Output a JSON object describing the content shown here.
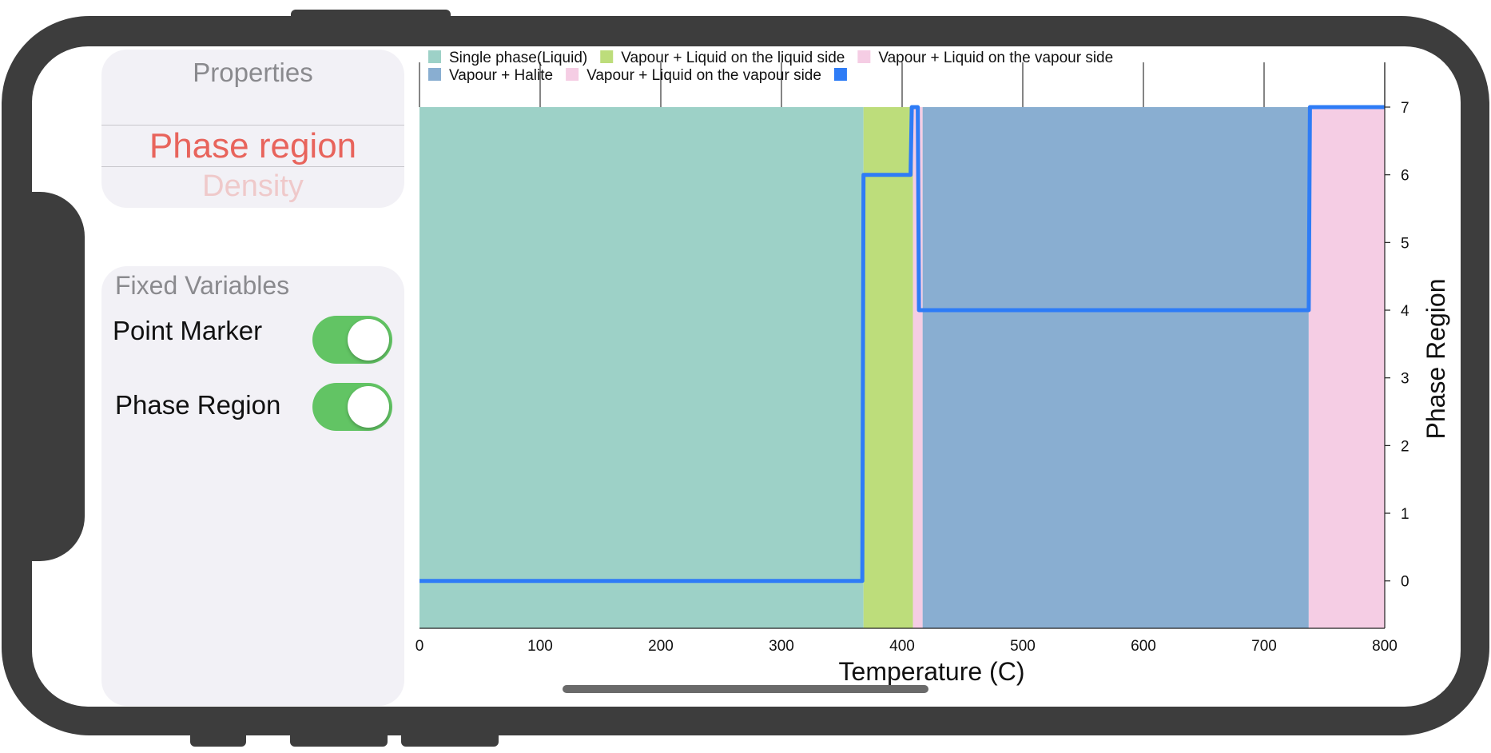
{
  "properties": {
    "title": "Properties",
    "selected": "Phase region",
    "next_item": "Density"
  },
  "fixed_variables": {
    "title": "Fixed Variables",
    "toggles": [
      {
        "label": "Point Marker",
        "on": true
      },
      {
        "label": "Phase Region",
        "on": true
      }
    ]
  },
  "chart_data": {
    "type": "area",
    "xlabel": "Temperature (C)",
    "ylabel": "Phase Region",
    "xlim": [
      0,
      800
    ],
    "ylim": [
      -0.7,
      7
    ],
    "x_ticks": [
      0,
      100,
      200,
      300,
      400,
      500,
      600,
      700,
      800
    ],
    "y_ticks": [
      0,
      1,
      2,
      3,
      4,
      5,
      6,
      7
    ],
    "legend_position": "top",
    "legend": [
      {
        "label": "Single phase(Liquid)",
        "color": "#9dd1c7"
      },
      {
        "label": "Vapour + Liquid on the liquid side",
        "color": "#bddd7b"
      },
      {
        "label": "Vapour + Liquid on the vapour side",
        "color": "#f5cde4"
      },
      {
        "label": "Vapour + Halite",
        "color": "#89aed1"
      },
      {
        "label": "Vapour + Liquid on the vapour side",
        "color": "#f5cde4"
      },
      {
        "label": "",
        "color": "#2e7cf6"
      }
    ],
    "regions": [
      {
        "x_start": 0,
        "x_end": 368,
        "color": "#9dd1c7"
      },
      {
        "x_start": 368,
        "x_end": 409,
        "color": "#bddd7b"
      },
      {
        "x_start": 409,
        "x_end": 417,
        "color": "#f5cde4"
      },
      {
        "x_start": 417,
        "x_end": 737,
        "color": "#89aed1"
      },
      {
        "x_start": 737,
        "x_end": 800,
        "color": "#f5cde4"
      }
    ],
    "line": {
      "color": "#2e7cf6",
      "x": [
        0,
        367,
        368,
        407,
        408,
        413,
        414,
        737,
        738,
        800
      ],
      "y": [
        0,
        0,
        6,
        6,
        7,
        7,
        4,
        4,
        7,
        7
      ]
    }
  }
}
